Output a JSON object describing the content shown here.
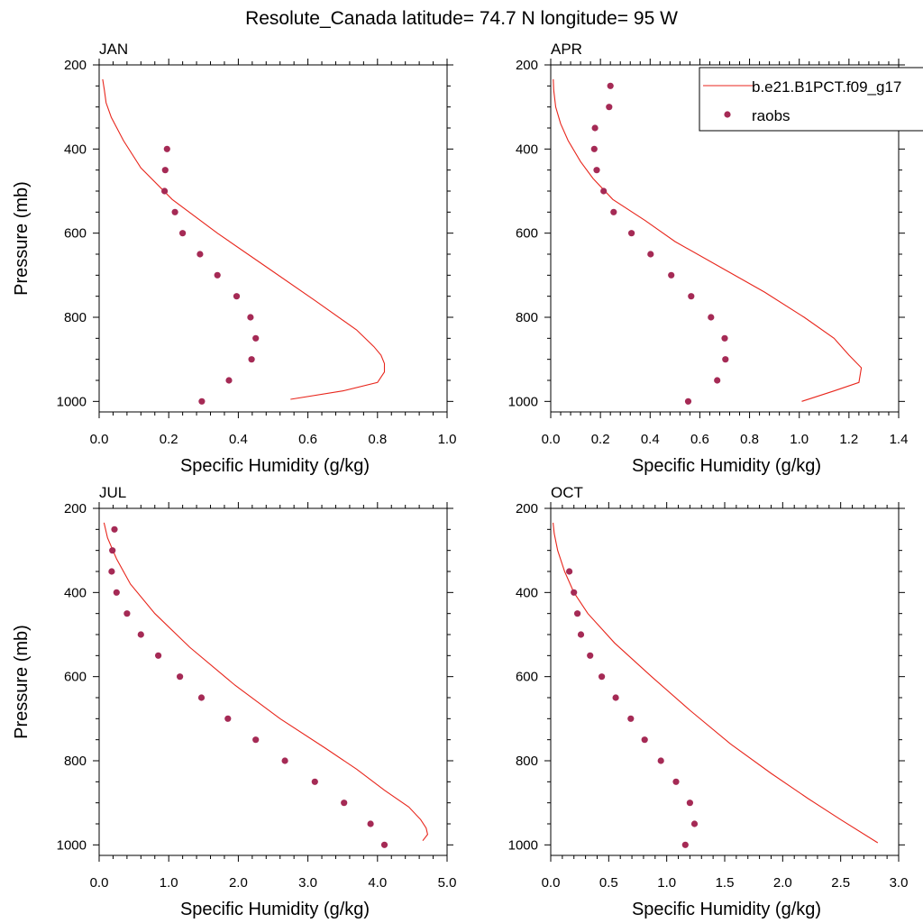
{
  "figure_title": "Resolute_Canada  latitude= 74.7 N longitude= 95 W",
  "colors": {
    "model_line": "#e8261c",
    "raobs_marker": "#a52a55"
  },
  "legend": {
    "placement": "top-right of APR panel",
    "model_label": "b.e21.B1PCT.f09_g17",
    "obs_label": "raobs"
  },
  "chart_data": [
    {
      "type": "line+scatter",
      "title": "JAN",
      "xlabel": "Specific Humidity (g/kg)",
      "ylabel": "Pressure (mb)",
      "xlim": [
        0,
        1.0
      ],
      "ylim": [
        200,
        1025
      ],
      "y_reversed": true,
      "xticks": [
        "0.0",
        "0.2",
        "0.4",
        "0.6",
        "0.8",
        "1.0"
      ],
      "yticks": [
        "200",
        "400",
        "600",
        "800",
        "1000"
      ],
      "series": [
        {
          "name": "b.e21.B1PCT.f09_g17",
          "kind": "line",
          "p": [
            234,
            260,
            290,
            325,
            380,
            445,
            520,
            600,
            680,
            760,
            830,
            870,
            890,
            910,
            930,
            955,
            975,
            995
          ],
          "q": [
            0.01,
            0.015,
            0.02,
            0.035,
            0.07,
            0.12,
            0.21,
            0.34,
            0.48,
            0.62,
            0.74,
            0.79,
            0.81,
            0.82,
            0.82,
            0.8,
            0.7,
            0.55
          ]
        },
        {
          "name": "raobs",
          "kind": "scatter",
          "p": [
            400,
            450,
            500,
            550,
            600,
            650,
            700,
            750,
            800,
            850,
            900,
            950,
            1000
          ],
          "q": [
            0.195,
            0.19,
            0.188,
            0.218,
            0.24,
            0.29,
            0.34,
            0.395,
            0.435,
            0.45,
            0.438,
            0.373,
            0.295
          ]
        }
      ]
    },
    {
      "type": "line+scatter",
      "title": "APR",
      "xlabel": "Specific Humidity (g/kg)",
      "ylabel": "",
      "xlim": [
        0,
        1.4
      ],
      "ylim": [
        200,
        1025
      ],
      "y_reversed": true,
      "xticks": [
        "0.0",
        "0.2",
        "0.4",
        "0.6",
        "0.8",
        "1.0",
        "1.2",
        "1.4"
      ],
      "yticks": [
        "200",
        "400",
        "600",
        "800",
        "1000"
      ],
      "series": [
        {
          "name": "b.e21.B1PCT.f09_g17",
          "kind": "line",
          "p": [
            234,
            260,
            300,
            340,
            380,
            430,
            470,
            520,
            570,
            620,
            680,
            740,
            800,
            850,
            890,
            920,
            955,
            975,
            1000
          ],
          "q": [
            0.01,
            0.012,
            0.02,
            0.04,
            0.07,
            0.12,
            0.17,
            0.25,
            0.38,
            0.5,
            0.68,
            0.86,
            1.02,
            1.14,
            1.2,
            1.25,
            1.24,
            1.14,
            1.01
          ]
        },
        {
          "name": "raobs",
          "kind": "scatter",
          "p": [
            250,
            300,
            350,
            400,
            450,
            500,
            550,
            600,
            650,
            700,
            750,
            800,
            850,
            900,
            950,
            1000
          ],
          "q": [
            0.24,
            0.235,
            0.178,
            0.175,
            0.185,
            0.213,
            0.253,
            0.325,
            0.402,
            0.485,
            0.565,
            0.645,
            0.7,
            0.703,
            0.67,
            0.553
          ]
        }
      ]
    },
    {
      "type": "line+scatter",
      "title": "JUL",
      "xlabel": "Specific Humidity (g/kg)",
      "ylabel": "Pressure (mb)",
      "xlim": [
        0,
        5.0
      ],
      "ylim": [
        200,
        1025
      ],
      "y_reversed": true,
      "xticks": [
        "0.0",
        "1.0",
        "2.0",
        "3.0",
        "4.0",
        "5.0"
      ],
      "yticks": [
        "200",
        "400",
        "600",
        "800",
        "1000"
      ],
      "series": [
        {
          "name": "b.e21.B1PCT.f09_g17",
          "kind": "line",
          "p": [
            234,
            270,
            320,
            380,
            450,
            530,
            620,
            700,
            770,
            820,
            870,
            910,
            940,
            960,
            975,
            990
          ],
          "q": [
            0.07,
            0.12,
            0.25,
            0.45,
            0.8,
            1.3,
            1.95,
            2.6,
            3.25,
            3.7,
            4.1,
            4.45,
            4.62,
            4.7,
            4.72,
            4.65
          ]
        },
        {
          "name": "raobs",
          "kind": "scatter",
          "p": [
            250,
            300,
            350,
            400,
            450,
            500,
            550,
            600,
            650,
            700,
            750,
            800,
            850,
            900,
            950,
            1000
          ],
          "q": [
            0.22,
            0.19,
            0.18,
            0.25,
            0.4,
            0.6,
            0.85,
            1.16,
            1.47,
            1.85,
            2.25,
            2.67,
            3.1,
            3.52,
            3.9,
            4.1
          ]
        }
      ]
    },
    {
      "type": "line+scatter",
      "title": "OCT",
      "xlabel": "Specific Humidity (g/kg)",
      "ylabel": "",
      "xlim": [
        0,
        3.0
      ],
      "ylim": [
        200,
        1025
      ],
      "y_reversed": true,
      "xticks": [
        "0.0",
        "0.5",
        "1.0",
        "1.5",
        "2.0",
        "2.5",
        "3.0"
      ],
      "yticks": [
        "200",
        "400",
        "600",
        "800",
        "1000"
      ],
      "series": [
        {
          "name": "b.e21.B1PCT.f09_g17",
          "kind": "line",
          "p": [
            234,
            260,
            300,
            350,
            400,
            450,
            520,
            600,
            680,
            760,
            830,
            890,
            940,
            995
          ],
          "q": [
            0.02,
            0.03,
            0.06,
            0.12,
            0.2,
            0.32,
            0.55,
            0.87,
            1.2,
            1.55,
            1.9,
            2.22,
            2.5,
            2.82
          ]
        },
        {
          "name": "raobs",
          "kind": "scatter",
          "p": [
            350,
            400,
            450,
            500,
            550,
            600,
            650,
            700,
            750,
            800,
            850,
            900,
            950,
            1000
          ],
          "q": [
            0.16,
            0.2,
            0.23,
            0.26,
            0.34,
            0.44,
            0.56,
            0.69,
            0.81,
            0.95,
            1.08,
            1.2,
            1.24,
            1.16
          ]
        }
      ]
    }
  ]
}
